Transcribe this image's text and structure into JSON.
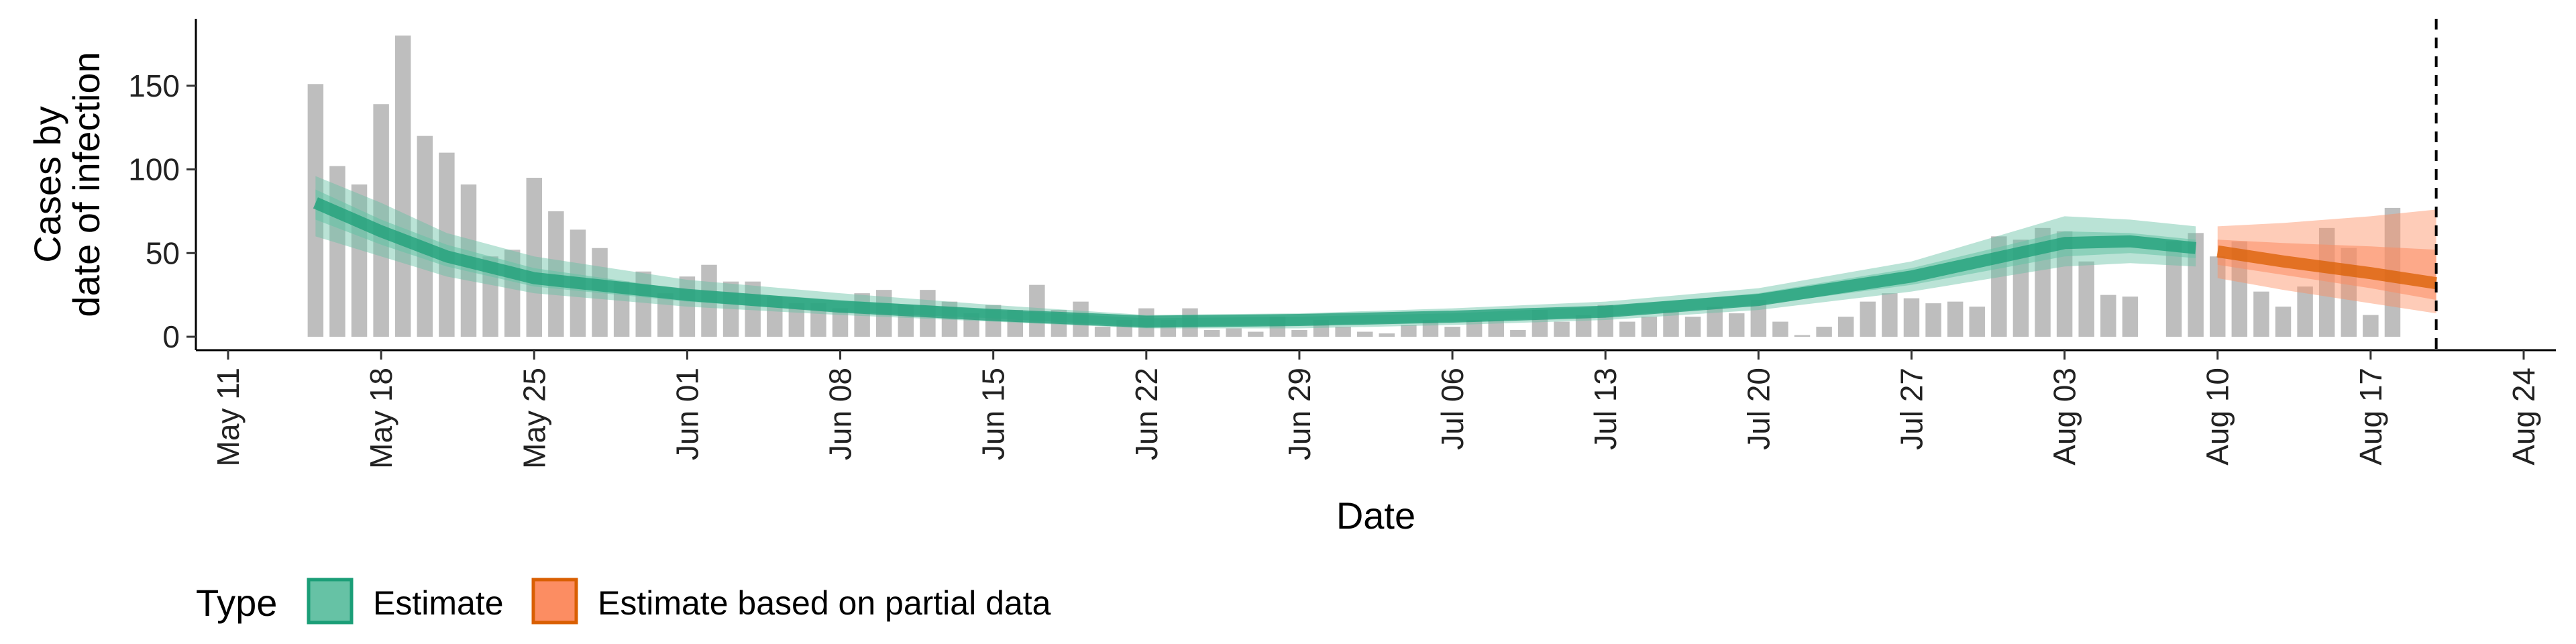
{
  "chart_data": {
    "type": "bar",
    "xlabel": "Date",
    "ylabel_lines": [
      "Cases by",
      "date of infection"
    ],
    "ylim": [
      0,
      190
    ],
    "yticks": [
      0,
      50,
      100,
      150
    ],
    "x_start": "2020-05-11",
    "x_end": "2020-08-24",
    "xticks": [
      {
        "date": "2020-05-11",
        "label": "May 11"
      },
      {
        "date": "2020-05-18",
        "label": "May 18"
      },
      {
        "date": "2020-05-25",
        "label": "May 25"
      },
      {
        "date": "2020-06-01",
        "label": "Jun 01"
      },
      {
        "date": "2020-06-08",
        "label": "Jun 08"
      },
      {
        "date": "2020-06-15",
        "label": "Jun 15"
      },
      {
        "date": "2020-06-22",
        "label": "Jun 22"
      },
      {
        "date": "2020-06-29",
        "label": "Jun 29"
      },
      {
        "date": "2020-07-06",
        "label": "Jul 06"
      },
      {
        "date": "2020-07-13",
        "label": "Jul 13"
      },
      {
        "date": "2020-07-20",
        "label": "Jul 20"
      },
      {
        "date": "2020-07-27",
        "label": "Jul 27"
      },
      {
        "date": "2020-08-03",
        "label": "Aug 03"
      },
      {
        "date": "2020-08-10",
        "label": "Aug 10"
      },
      {
        "date": "2020-08-17",
        "label": "Aug 17"
      },
      {
        "date": "2020-08-24",
        "label": "Aug 24"
      }
    ],
    "bars": {
      "start_date": "2020-05-15",
      "color": "#bebebe",
      "values": [
        151,
        102,
        91,
        139,
        180,
        120,
        110,
        91,
        48,
        52,
        95,
        75,
        64,
        53,
        33,
        39,
        26,
        36,
        43,
        33,
        33,
        24,
        20,
        20,
        17,
        26,
        28,
        19,
        28,
        21,
        14,
        19,
        16,
        31,
        16,
        21,
        6,
        10,
        17,
        10,
        17,
        4,
        5,
        3,
        12,
        4,
        10,
        6,
        3,
        2,
        7,
        10,
        6,
        10,
        10,
        4,
        16,
        9,
        13,
        19,
        9,
        12,
        16,
        12,
        18,
        14,
        22,
        9,
        1,
        6,
        12,
        21,
        26,
        23,
        20,
        21,
        18,
        60,
        58,
        65,
        63,
        45,
        25,
        24,
        0,
        57,
        62,
        48,
        57,
        27,
        18,
        30,
        65,
        53,
        13,
        77
      ]
    },
    "series": [
      {
        "name": "Estimate",
        "color": "#1b9e77",
        "fill": "#66c2a5",
        "points": [
          {
            "date": "2020-05-15",
            "outer": [
              60,
              96
            ],
            "inner": [
              70,
              88
            ],
            "median": 80
          },
          {
            "date": "2020-05-18",
            "outer": [
              48,
              80
            ],
            "inner": [
              55,
              70
            ],
            "median": 63
          },
          {
            "date": "2020-05-21",
            "outer": [
              36,
              62
            ],
            "inner": [
              42,
              55
            ],
            "median": 48
          },
          {
            "date": "2020-05-25",
            "outer": [
              26,
              48
            ],
            "inner": [
              30,
              41
            ],
            "median": 35
          },
          {
            "date": "2020-06-01",
            "outer": [
              18,
              34
            ],
            "inner": [
              21,
              28
            ],
            "median": 25
          },
          {
            "date": "2020-06-08",
            "outer": [
              13,
              26
            ],
            "inner": [
              15,
              22
            ],
            "median": 18
          },
          {
            "date": "2020-06-15",
            "outer": [
              9,
              19
            ],
            "inner": [
              11,
              16
            ],
            "median": 13
          },
          {
            "date": "2020-06-22",
            "outer": [
              5,
              13
            ],
            "inner": [
              6,
              11
            ],
            "median": 9
          },
          {
            "date": "2020-06-29",
            "outer": [
              5,
              14
            ],
            "inner": [
              7,
              12
            ],
            "median": 10
          },
          {
            "date": "2020-07-06",
            "outer": [
              7,
              17
            ],
            "inner": [
              9,
              14
            ],
            "median": 12
          },
          {
            "date": "2020-07-13",
            "outer": [
              10,
              21
            ],
            "inner": [
              12,
              18
            ],
            "median": 15
          },
          {
            "date": "2020-07-20",
            "outer": [
              16,
              29
            ],
            "inner": [
              19,
              26
            ],
            "median": 22
          },
          {
            "date": "2020-07-27",
            "outer": [
              27,
              45
            ],
            "inner": [
              31,
              41
            ],
            "median": 36
          },
          {
            "date": "2020-08-03",
            "outer": [
              42,
              72
            ],
            "inner": [
              48,
              63
            ],
            "median": 56
          },
          {
            "date": "2020-08-06",
            "outer": [
              44,
              70
            ],
            "inner": [
              50,
              62
            ],
            "median": 57
          },
          {
            "date": "2020-08-09",
            "outer": [
              42,
              66
            ],
            "inner": [
              47,
              58
            ],
            "median": 53
          }
        ]
      },
      {
        "name": "Estimate based on partial data",
        "color": "#d95f02",
        "fill": "#fc8d62",
        "points": [
          {
            "date": "2020-08-10",
            "outer": [
              35,
              66
            ],
            "inner": [
              43,
              58
            ],
            "median": 51
          },
          {
            "date": "2020-08-13",
            "outer": [
              28,
              68
            ],
            "inner": [
              37,
              56
            ],
            "median": 45
          },
          {
            "date": "2020-08-17",
            "outer": [
              20,
              72
            ],
            "inner": [
              29,
              54
            ],
            "median": 38
          },
          {
            "date": "2020-08-20",
            "outer": [
              14,
              76
            ],
            "inner": [
              22,
              52
            ],
            "median": 32
          }
        ]
      }
    ],
    "vline_date": "2020-08-20",
    "legend": {
      "position": "bottom",
      "title": "Type",
      "items": [
        {
          "label": "Estimate",
          "fill": "#66c2a5",
          "stroke": "#1b9e77"
        },
        {
          "label": "Estimate based on partial data",
          "fill": "#fc8d62",
          "stroke": "#d95f02"
        }
      ]
    },
    "grid": false
  }
}
